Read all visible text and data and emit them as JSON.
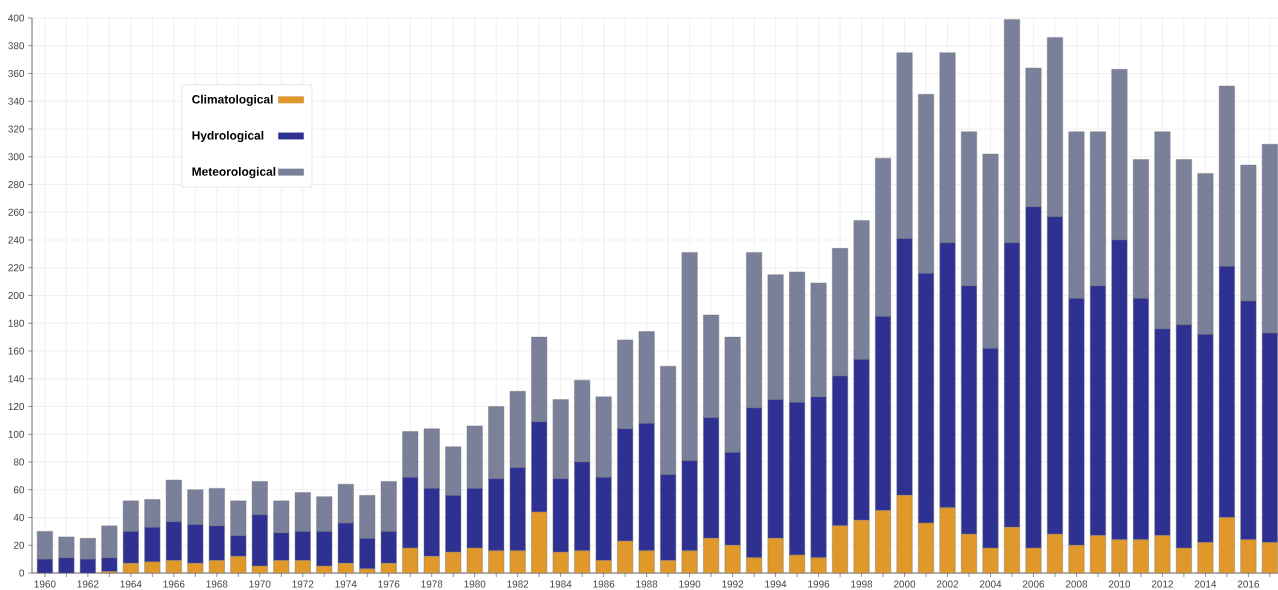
{
  "chart_data": {
    "type": "bar",
    "stacked": true,
    "grid": true,
    "legend": "top left",
    "categories": [
      "1960",
      null,
      "1962",
      null,
      "1964",
      null,
      "1966",
      null,
      "1968",
      null,
      "1970",
      null,
      "1972",
      null,
      "1974",
      null,
      "1976",
      null,
      "1978",
      null,
      "1980",
      null,
      "1982",
      null,
      "1984",
      null,
      "1986",
      null,
      "1988",
      null,
      "1990",
      null,
      "1992",
      null,
      "1994",
      null,
      "1996",
      null,
      "1998",
      null,
      "2000",
      null,
      "2002",
      null,
      "2004",
      null,
      "2006",
      null,
      "2008",
      null,
      "2010",
      null,
      "2012",
      null,
      "2014",
      null,
      "2016",
      null
    ],
    "ylim": [
      0,
      400
    ],
    "yticks": [
      0,
      20,
      40,
      60,
      80,
      100,
      120,
      140,
      160,
      180,
      200,
      220,
      240,
      260,
      280,
      300,
      320,
      340,
      360,
      380,
      400
    ],
    "series": [
      {
        "name": "Climatological",
        "color": "#e0982a",
        "values": [
          0,
          0,
          0,
          1,
          7,
          8,
          9,
          7,
          9,
          12,
          5,
          9,
          9,
          5,
          7,
          3,
          7,
          18,
          12,
          15,
          18,
          16,
          16,
          44,
          15,
          16,
          9,
          23,
          16,
          9,
          16,
          25,
          20,
          11,
          25,
          13,
          11,
          34,
          38,
          45,
          56,
          36,
          47,
          28,
          18,
          33,
          18,
          28,
          20,
          27,
          24,
          24,
          27,
          18,
          22,
          40,
          24,
          22
        ]
      },
      {
        "name": "Hydrological",
        "color": "#2e3192",
        "values": [
          10,
          11,
          10,
          10,
          23,
          25,
          28,
          28,
          25,
          15,
          37,
          20,
          21,
          25,
          29,
          22,
          23,
          51,
          49,
          41,
          43,
          52,
          60,
          65,
          53,
          64,
          60,
          81,
          92,
          62,
          65,
          87,
          67,
          108,
          100,
          110,
          116,
          108,
          116,
          140,
          185,
          180,
          191,
          179,
          144,
          205,
          246,
          229,
          178,
          180,
          216,
          174,
          149,
          161,
          150,
          181,
          172,
          151
        ]
      },
      {
        "name": "Meteorological",
        "color": "#7a809a",
        "values": [
          20,
          15,
          15,
          23,
          22,
          20,
          30,
          25,
          27,
          25,
          24,
          23,
          28,
          25,
          28,
          31,
          36,
          33,
          43,
          35,
          45,
          52,
          55,
          61,
          57,
          59,
          58,
          64,
          66,
          78,
          150,
          74,
          83,
          112,
          90,
          94,
          82,
          92,
          100,
          114,
          134,
          129,
          137,
          111,
          140,
          161,
          100,
          129,
          120,
          111,
          123,
          100,
          142,
          119,
          116,
          130,
          98,
          136
        ]
      }
    ]
  }
}
